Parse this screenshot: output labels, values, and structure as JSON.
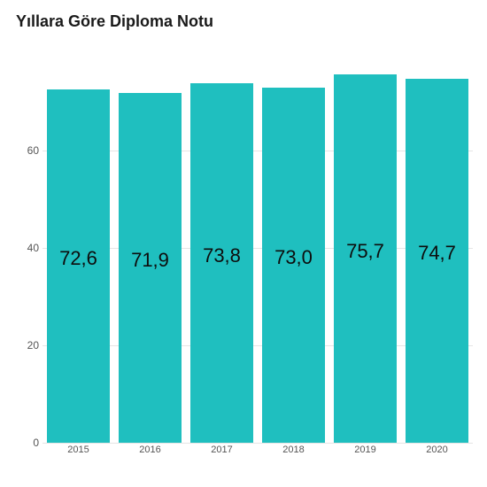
{
  "chart": {
    "type": "bar",
    "title": "Yıllara Göre Diploma Notu",
    "title_fontsize": 18,
    "categories": [
      "2015",
      "2016",
      "2017",
      "2018",
      "2019",
      "2020"
    ],
    "values": [
      72.6,
      71.9,
      73.8,
      73.0,
      75.7,
      74.7
    ],
    "value_labels": [
      "72,6",
      "71,9",
      "73,8",
      "73,0",
      "75,7",
      "74,7"
    ],
    "bar_color": "#1fbfbf",
    "value_label_fontsize": 22,
    "value_label_color": "#0d0d0d",
    "ylim": [
      0,
      80
    ],
    "yticks": [
      0,
      20,
      40,
      60
    ],
    "ytick_fontsize": 12,
    "xtick_fontsize": 11,
    "grid_color": "#e5e5e5",
    "background_color": "#ffffff",
    "bar_width_ratio": 0.88
  }
}
